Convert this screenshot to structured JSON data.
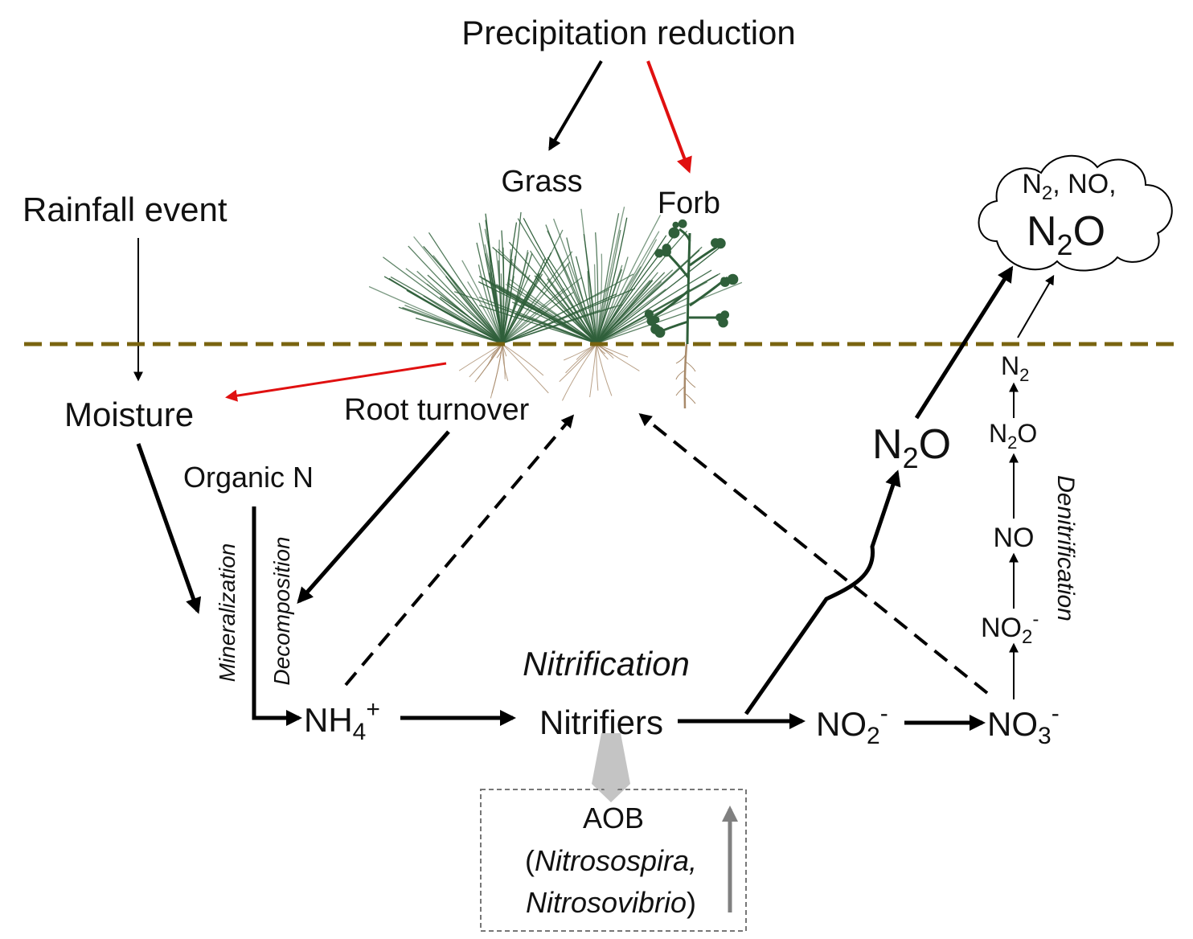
{
  "labels": {
    "precipitation": "Precipitation reduction",
    "grass": "Grass",
    "forb": "Forb",
    "rainfall": "Rainfall event",
    "moisture": "Moisture",
    "root_turnover": "Root turnover",
    "organic_n": "Organic N",
    "mineralization": "Mineralization",
    "decomposition": "Decomposition",
    "nitrification": "Nitrification",
    "nitrifiers": "Nitrifiers",
    "denitrification": "Denitrification",
    "aob": "AOB",
    "aob_genus1": "Nitrosospira,",
    "aob_genus2": "Nitrosovibrio"
  },
  "chem": {
    "nh4": {
      "base": "NH",
      "sub": "4",
      "sup": "+"
    },
    "no2": {
      "base": "NO",
      "sub": "2",
      "sup": "-"
    },
    "no3": {
      "base": "NO",
      "sub": "3",
      "sup": "-"
    },
    "n2o": {
      "base": "N",
      "sub": "2",
      "rest": "O"
    },
    "n2": {
      "base": "N",
      "sub": "2"
    },
    "no": "NO",
    "cloud_line1": {
      "base": "N",
      "sub": "2",
      "rest": ", NO,"
    },
    "cloud_line2": {
      "base": "N",
      "sub": "2",
      "rest": "O"
    }
  },
  "colors": {
    "negative_effect": "#e01010",
    "soil_line": "#7a6410",
    "grass": "#2f5f3a",
    "root": "#a88a6a"
  }
}
